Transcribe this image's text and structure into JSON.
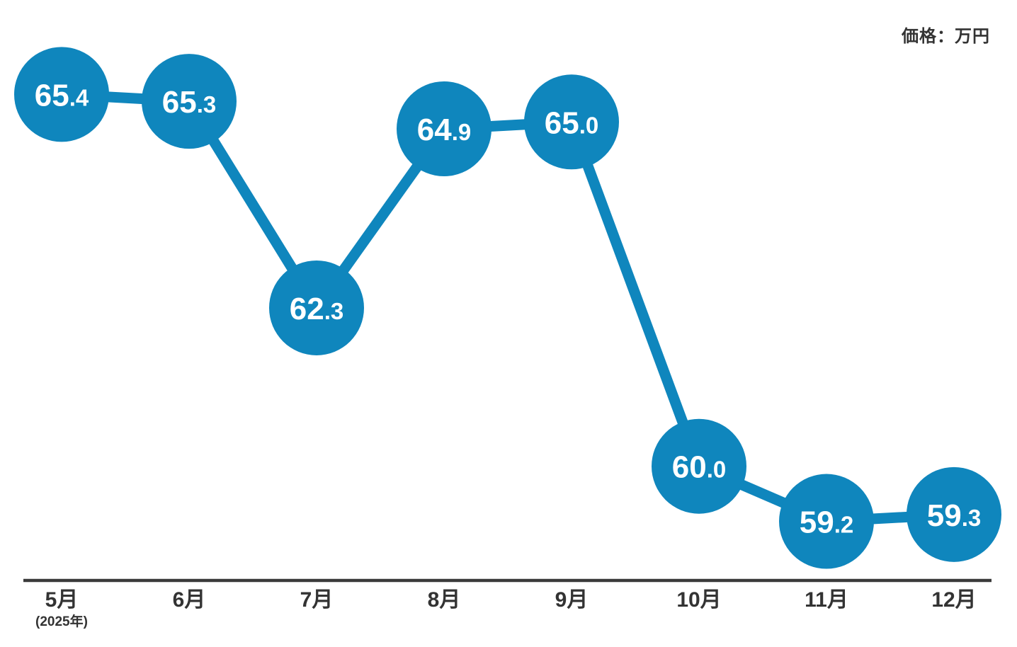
{
  "chart_data": {
    "type": "line",
    "title": "",
    "unit_label": "価格：万円",
    "xlabel": "",
    "ylabel": "価格（万円）",
    "categories": [
      "5月",
      "6月",
      "7月",
      "8月",
      "9月",
      "10月",
      "11月",
      "12月"
    ],
    "x_year_label": "(2025年)",
    "values": [
      65.4,
      65.3,
      62.3,
      64.9,
      65.0,
      60.0,
      59.2,
      59.3
    ],
    "value_labels": [
      "65.4",
      "65.3",
      "62.3",
      "64.9",
      "65.0",
      "60.0",
      "59.2",
      "59.3"
    ],
    "ylim": [
      59,
      66
    ],
    "grid": false,
    "legend": "none",
    "colors": {
      "point_fill": "#0f86bd",
      "line": "#0f86bd",
      "value_text": "#ffffff",
      "axis": "#3a3a3a",
      "label_text": "#333333"
    }
  }
}
